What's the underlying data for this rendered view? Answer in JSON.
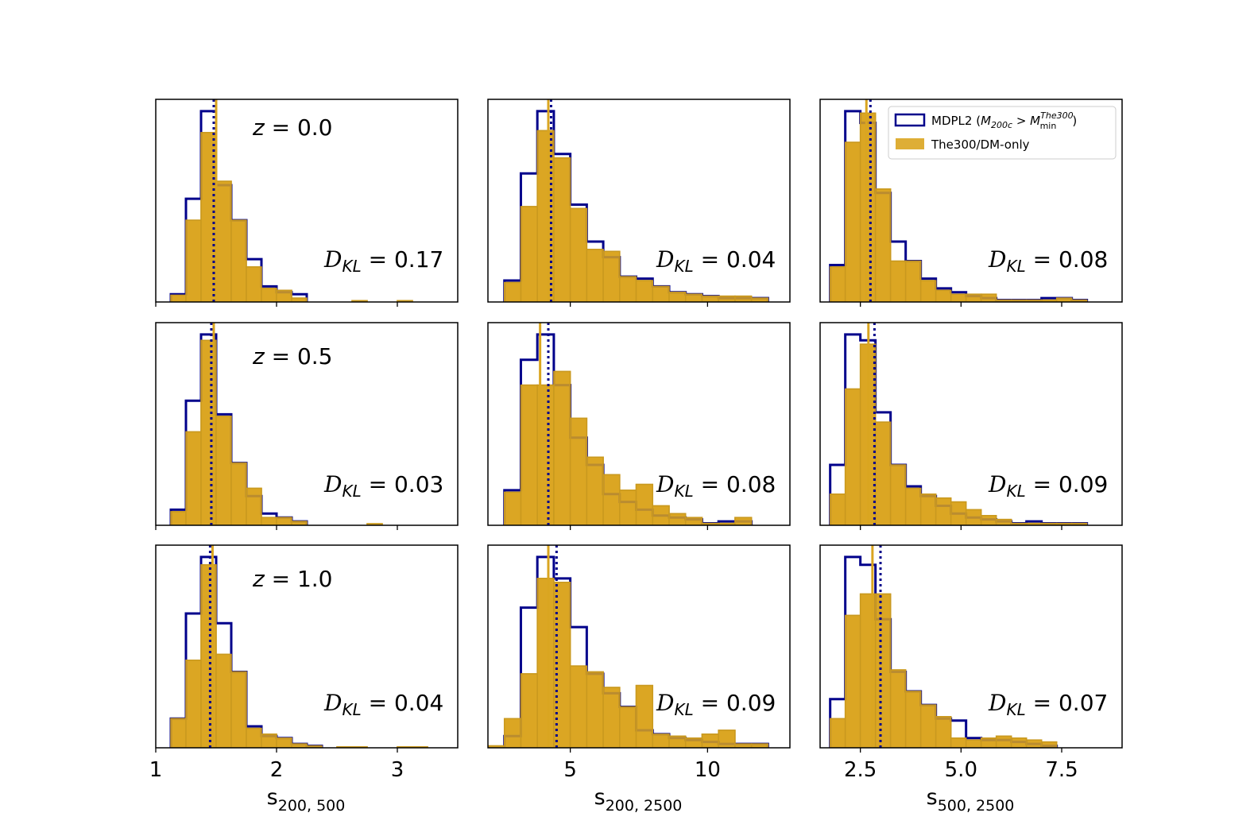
{
  "colors": {
    "mdpl2": "#00008b",
    "the300": "#daa520",
    "the300_edge": "#c9991f"
  },
  "legend": {
    "mdpl2_label": "MDPL2 (M₂₀₀c > Mᵐⁱⁿ The300)",
    "mdpl2_prefix": "MDPL2 (",
    "mdpl2_m": "M",
    "mdpl2_m_sub": "200c",
    "mdpl2_gt": " > ",
    "mdpl2_m2": "M",
    "mdpl2_m2_sup": "The300",
    "mdpl2_m2_sub": "min",
    "mdpl2_suffix": ")",
    "the300_label": "The300/DM-only",
    "location": "upper-right"
  },
  "chart_data": [
    {
      "type": "histogram",
      "row": 0,
      "col": 0,
      "redshift_label": "z = 0.0",
      "dkl_label": "𝒟KL = 0.17",
      "dkl_value": "0.17",
      "xlim": [
        1.0,
        3.5
      ],
      "ylim": [
        0,
        1.0
      ],
      "xlabel": "s200,500",
      "ticks": [
        1,
        2,
        3
      ],
      "tick_labels": [
        "1",
        "2",
        "3"
      ],
      "mdpl2": {
        "edges": [
          1.125,
          1.25,
          1.375,
          1.5,
          1.625,
          1.75,
          1.875,
          2.0,
          2.125,
          2.25
        ],
        "counts": [
          0.04,
          0.53,
          0.98,
          0.6,
          0.42,
          0.22,
          0.08,
          0.05,
          0.04
        ]
      },
      "the300": {
        "edges": [
          1.125,
          1.25,
          1.375,
          1.5,
          1.625,
          1.75,
          1.875,
          2.0,
          2.125,
          2.25,
          2.375,
          2.5,
          2.625,
          2.75,
          2.875,
          3.0,
          3.125
        ],
        "counts": [
          0.035,
          0.42,
          0.87,
          0.62,
          0.42,
          0.18,
          0.07,
          0.06,
          0.02,
          0,
          0,
          0,
          0.007,
          0,
          0,
          0.007
        ]
      },
      "mdpl2_median": 1.48,
      "the300_median": 1.5
    },
    {
      "type": "histogram",
      "row": 0,
      "col": 1,
      "redshift_label": "",
      "dkl_label": "𝒟KL = 0.04",
      "dkl_value": "0.04",
      "xlim": [
        2.0,
        13.0
      ],
      "ylim": [
        0,
        1.0
      ],
      "xlabel": "s200,2500",
      "ticks": [
        5,
        10
      ],
      "tick_labels": [
        "5",
        "10"
      ],
      "mdpl2": {
        "edges": [
          2.6,
          3.2,
          3.8,
          4.4,
          5.0,
          5.6,
          6.2,
          6.8,
          7.4,
          8.0,
          8.6,
          9.2,
          9.8,
          10.4,
          11.0,
          11.6,
          12.2
        ],
        "counts": [
          0.11,
          0.66,
          0.98,
          0.76,
          0.5,
          0.31,
          0.23,
          0.13,
          0.12,
          0.08,
          0.05,
          0.04,
          0.03,
          0.02,
          0.02,
          0.02
        ]
      },
      "the300": {
        "edges": [
          2.6,
          3.2,
          3.8,
          4.4,
          5.0,
          5.6,
          6.2,
          6.8,
          7.4,
          8.0,
          8.6,
          9.2,
          9.8,
          10.4,
          11.0,
          11.6,
          12.2
        ],
        "counts": [
          0.1,
          0.49,
          0.88,
          0.74,
          0.48,
          0.27,
          0.26,
          0.13,
          0.11,
          0.08,
          0.05,
          0.04,
          0.03,
          0.03,
          0.03,
          0.02
        ]
      },
      "mdpl2_median": 4.3,
      "the300_median": 4.2
    },
    {
      "type": "histogram",
      "row": 0,
      "col": 2,
      "redshift_label": "",
      "dkl_label": "𝒟KL = 0.08",
      "dkl_value": "0.08",
      "xlim": [
        1.5,
        9.0
      ],
      "ylim": [
        0,
        1.0
      ],
      "xlabel": "s500,2500",
      "ticks": [
        2.5,
        5.0,
        7.5
      ],
      "tick_labels": [
        "2.5",
        "5.0",
        "7.5"
      ],
      "mdpl2": {
        "edges": [
          1.75,
          2.125,
          2.5,
          2.875,
          3.25,
          3.625,
          4.0,
          4.375,
          4.75,
          5.125,
          5.5,
          5.875,
          6.25,
          6.625,
          7.0,
          7.375,
          7.75,
          8.125
        ],
        "counts": [
          0.19,
          0.98,
          0.92,
          0.56,
          0.31,
          0.21,
          0.12,
          0.07,
          0.05,
          0.03,
          0.02,
          0.01,
          0.01,
          0.01,
          0.02,
          0.02,
          0.01
        ]
      },
      "the300": {
        "edges": [
          1.75,
          2.125,
          2.5,
          2.875,
          3.25,
          3.625,
          4.0,
          4.375,
          4.75,
          5.125,
          5.5,
          5.875,
          6.25,
          6.625,
          7.0,
          7.375,
          7.75,
          8.125
        ],
        "counts": [
          0.18,
          0.82,
          0.97,
          0.58,
          0.21,
          0.21,
          0.11,
          0.06,
          0.04,
          0.04,
          0.04,
          0.01,
          0.01,
          0.01,
          0.01,
          0.02,
          0.01
        ]
      },
      "mdpl2_median": 2.75,
      "the300_median": 2.65
    },
    {
      "type": "histogram",
      "row": 1,
      "col": 0,
      "redshift_label": "z = 0.5",
      "dkl_label": "𝒟KL = 0.03",
      "dkl_value": "0.03",
      "xlim": [
        1.0,
        3.5
      ],
      "ylim": [
        0,
        1.0
      ],
      "xlabel": "s200,500",
      "ticks": [
        1,
        2,
        3
      ],
      "tick_labels": [
        "1",
        "2",
        "3"
      ],
      "mdpl2": {
        "edges": [
          1.125,
          1.25,
          1.375,
          1.5,
          1.625,
          1.75,
          1.875,
          2.0,
          2.125,
          2.25
        ],
        "counts": [
          0.08,
          0.64,
          0.98,
          0.57,
          0.32,
          0.15,
          0.06,
          0.04,
          0.02
        ]
      },
      "the300": {
        "edges": [
          1.125,
          1.25,
          1.375,
          1.5,
          1.625,
          1.75,
          1.875,
          2.0,
          2.125,
          2.25,
          2.375,
          2.5,
          2.625,
          2.75,
          2.875
        ],
        "counts": [
          0.07,
          0.48,
          0.95,
          0.56,
          0.32,
          0.19,
          0.04,
          0.04,
          0.02,
          0,
          0,
          0,
          0,
          0.008
        ]
      },
      "mdpl2_median": 1.46,
      "the300_median": 1.48
    },
    {
      "type": "histogram",
      "row": 1,
      "col": 1,
      "redshift_label": "",
      "dkl_label": "𝒟KL = 0.08",
      "dkl_value": "0.08",
      "xlim": [
        2.0,
        13.0
      ],
      "ylim": [
        0,
        1.0
      ],
      "xlabel": "s200,2500",
      "ticks": [
        5,
        10
      ],
      "tick_labels": [
        "5",
        "10"
      ],
      "mdpl2": {
        "edges": [
          2.6,
          3.2,
          3.8,
          4.4,
          5.0,
          5.6,
          6.2,
          6.8,
          7.4,
          8.0,
          8.6,
          9.2,
          9.8,
          10.4,
          11.0,
          11.6
        ],
        "counts": [
          0.18,
          0.85,
          0.98,
          0.72,
          0.45,
          0.31,
          0.16,
          0.12,
          0.08,
          0.05,
          0.04,
          0.03,
          0.01,
          0.02,
          0.02
        ]
      },
      "the300": {
        "edges": [
          2.6,
          3.2,
          3.8,
          4.4,
          5.0,
          5.6,
          6.2,
          6.8,
          7.4,
          8.0,
          8.6,
          9.2,
          9.8,
          10.4,
          11.0,
          11.6
        ],
        "counts": [
          0.17,
          0.72,
          0.72,
          0.79,
          0.55,
          0.35,
          0.26,
          0.18,
          0.21,
          0.1,
          0.06,
          0.04,
          0.01,
          0.01,
          0.04
        ]
      },
      "mdpl2_median": 4.2,
      "the300_median": 3.9
    },
    {
      "type": "histogram",
      "row": 1,
      "col": 2,
      "redshift_label": "",
      "dkl_label": "𝒟KL = 0.09",
      "dkl_value": "0.09",
      "xlim": [
        1.5,
        9.0
      ],
      "ylim": [
        0,
        1.0
      ],
      "xlabel": "s500,2500",
      "ticks": [
        2.5,
        5.0,
        7.5
      ],
      "tick_labels": [
        "2.5",
        "5.0",
        "7.5"
      ],
      "mdpl2": {
        "edges": [
          1.75,
          2.125,
          2.5,
          2.875,
          3.25,
          3.625,
          4.0,
          4.375,
          4.75,
          5.125,
          5.5,
          5.875,
          6.25,
          6.625,
          7.0,
          7.375,
          7.75,
          8.125
        ],
        "counts": [
          0.31,
          0.98,
          0.95,
          0.58,
          0.31,
          0.2,
          0.15,
          0.1,
          0.06,
          0.04,
          0.03,
          0.02,
          0.01,
          0.02,
          0.01,
          0.01,
          0.01
        ]
      },
      "the300": {
        "edges": [
          1.75,
          2.125,
          2.5,
          2.875,
          3.25,
          3.625,
          4.0,
          4.375,
          4.75,
          5.125,
          5.5,
          5.875,
          6.25,
          6.625,
          7.0,
          7.375,
          7.75,
          8.125
        ],
        "counts": [
          0.16,
          0.7,
          0.93,
          0.53,
          0.31,
          0.19,
          0.16,
          0.14,
          0.12,
          0.08,
          0.05,
          0.03,
          0.01,
          0.01,
          0.01,
          0.01,
          0.01
        ]
      },
      "mdpl2_median": 2.85,
      "the300_median": 2.7
    },
    {
      "type": "histogram",
      "row": 2,
      "col": 0,
      "redshift_label": "z = 1.0",
      "dkl_label": "𝒟KL = 0.04",
      "dkl_value": "0.04",
      "xlim": [
        1.0,
        3.5
      ],
      "ylim": [
        0,
        1.0
      ],
      "xlabel": "s200,500",
      "ticks": [
        1,
        2,
        3
      ],
      "tick_labels": [
        "1",
        "2",
        "3"
      ],
      "mdpl2": {
        "edges": [
          1.125,
          1.25,
          1.375,
          1.5,
          1.625,
          1.75,
          1.875,
          2.0,
          2.125,
          2.25,
          2.375
        ],
        "counts": [
          0.15,
          0.69,
          0.98,
          0.64,
          0.39,
          0.11,
          0.06,
          0.05,
          0.02,
          0.01
        ]
      },
      "the300": {
        "edges": [
          1.125,
          1.25,
          1.375,
          1.5,
          1.625,
          1.75,
          1.875,
          2.0,
          2.125,
          2.25,
          2.375,
          2.5,
          2.625,
          2.75,
          2.875,
          3.0,
          3.125,
          3.25
        ],
        "counts": [
          0.15,
          0.45,
          0.94,
          0.48,
          0.39,
          0.1,
          0.07,
          0.05,
          0.02,
          0.01,
          0,
          0.005,
          0.005,
          0,
          0,
          0.005,
          0.005
        ]
      },
      "mdpl2_median": 1.45,
      "the300_median": 1.47
    },
    {
      "type": "histogram",
      "row": 2,
      "col": 1,
      "redshift_label": "",
      "dkl_label": "𝒟KL = 0.09",
      "dkl_value": "0.09",
      "xlim": [
        2.0,
        13.0
      ],
      "ylim": [
        0,
        1.0
      ],
      "xlabel": "s200,2500",
      "ticks": [
        5,
        10
      ],
      "tick_labels": [
        "5",
        "10"
      ],
      "mdpl2": {
        "edges": [
          2.6,
          3.2,
          3.8,
          4.4,
          5.0,
          5.6,
          6.2,
          6.8,
          7.4,
          8.0,
          8.6,
          9.2,
          9.8,
          10.4,
          11.0,
          11.6,
          12.2
        ],
        "counts": [
          0.06,
          0.72,
          0.98,
          0.87,
          0.62,
          0.38,
          0.28,
          0.21,
          0.09,
          0.07,
          0.05,
          0.04,
          0.03,
          0.02,
          0.02,
          0.02
        ]
      },
      "the300": {
        "edges": [
          1.9,
          2.6,
          3.2,
          3.8,
          4.4,
          5.0,
          5.6,
          6.2,
          6.8,
          7.4,
          8.0,
          8.6,
          9.2,
          9.8,
          10.4,
          11.0,
          11.6,
          12.2
        ],
        "counts": [
          0.01,
          0.15,
          0.38,
          0.87,
          0.85,
          0.42,
          0.39,
          0.31,
          0.21,
          0.32,
          0.07,
          0.06,
          0.05,
          0.07,
          0.09,
          0.02,
          0.02
        ]
      },
      "mdpl2_median": 4.5,
      "the300_median": 4.2
    },
    {
      "type": "histogram",
      "row": 2,
      "col": 2,
      "redshift_label": "",
      "dkl_label": "𝒟KL = 0.07",
      "dkl_value": "0.07",
      "xlim": [
        1.5,
        9.0
      ],
      "ylim": [
        0,
        1.0
      ],
      "xlabel": "s500,2500",
      "ticks": [
        2.5,
        5.0,
        7.5
      ],
      "tick_labels": [
        "2.5",
        "5.0",
        "7.5"
      ],
      "mdpl2": {
        "edges": [
          1.75,
          2.125,
          2.5,
          2.875,
          3.25,
          3.625,
          4.0,
          4.375,
          4.75,
          5.125,
          5.5,
          5.875,
          6.25,
          6.625,
          7.0,
          7.375
        ],
        "counts": [
          0.25,
          0.98,
          0.94,
          0.66,
          0.39,
          0.29,
          0.22,
          0.15,
          0.14,
          0.05,
          0.04,
          0.04,
          0.03,
          0.02,
          0.01
        ]
      },
      "the300": {
        "edges": [
          1.75,
          2.125,
          2.5,
          2.875,
          3.25,
          3.625,
          4.0,
          4.375,
          4.75,
          5.125,
          5.5,
          5.875,
          6.25,
          6.625,
          7.0,
          7.375
        ],
        "counts": [
          0.15,
          0.68,
          0.79,
          0.79,
          0.4,
          0.29,
          0.22,
          0.16,
          0.05,
          0.04,
          0.05,
          0.06,
          0.05,
          0.04,
          0.03
        ]
      },
      "mdpl2_median": 3.0,
      "the300_median": 2.8
    }
  ]
}
